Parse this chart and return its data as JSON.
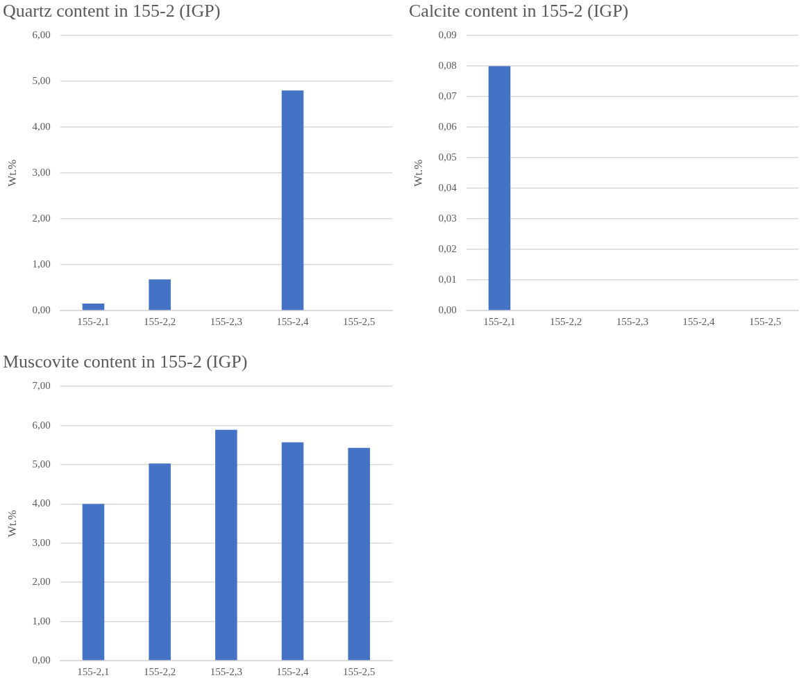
{
  "chart_data": [
    {
      "type": "bar",
      "title": "Quartz content in 155-2 (IGP)",
      "ylabel": "Wt.%",
      "categories": [
        "155-2,1",
        "155-2,2",
        "155-2,3",
        "155-2,4",
        "155-2,5"
      ],
      "values": [
        0.15,
        0.68,
        0,
        4.8,
        0
      ],
      "color": "#4472c4",
      "ylim": [
        0,
        6
      ],
      "yticks": [
        {
          "value": 0,
          "label": "0,00"
        },
        {
          "value": 1,
          "label": "1,00"
        },
        {
          "value": 2,
          "label": "2,00"
        },
        {
          "value": 3,
          "label": "3,00"
        },
        {
          "value": 4,
          "label": "4,00"
        },
        {
          "value": 5,
          "label": "5,00"
        },
        {
          "value": 6,
          "label": "6,00"
        }
      ],
      "grid": "y"
    },
    {
      "type": "bar",
      "title": "Calcite content in 155-2 (IGP)",
      "ylabel": "Wt.%",
      "categories": [
        "155-2,1",
        "155-2,2",
        "155-2,3",
        "155-2,4",
        "155-2,5"
      ],
      "values": [
        0.08,
        0,
        0,
        0,
        0
      ],
      "color": "#4472c4",
      "ylim": [
        0,
        0.09
      ],
      "yticks": [
        {
          "value": 0,
          "label": "0,00"
        },
        {
          "value": 0.01,
          "label": "0,01"
        },
        {
          "value": 0.02,
          "label": "0,02"
        },
        {
          "value": 0.03,
          "label": "0,03"
        },
        {
          "value": 0.04,
          "label": "0,04"
        },
        {
          "value": 0.05,
          "label": "0,05"
        },
        {
          "value": 0.06,
          "label": "0,06"
        },
        {
          "value": 0.07,
          "label": "0,07"
        },
        {
          "value": 0.08,
          "label": "0,08"
        },
        {
          "value": 0.09,
          "label": "0,09"
        }
      ],
      "grid": "y"
    },
    {
      "type": "bar",
      "title": "Muscovite content in 155-2 (IGP)",
      "ylabel": "Wt.%",
      "categories": [
        "155-2,1",
        "155-2,2",
        "155-2,3",
        "155-2,4",
        "155-2,5"
      ],
      "values": [
        4.0,
        5.03,
        5.89,
        5.57,
        5.43
      ],
      "color": "#4472c4",
      "ylim": [
        0,
        7
      ],
      "yticks": [
        {
          "value": 0,
          "label": "0,00"
        },
        {
          "value": 1,
          "label": "1,00"
        },
        {
          "value": 2,
          "label": "2,00"
        },
        {
          "value": 3,
          "label": "3,00"
        },
        {
          "value": 4,
          "label": "4,00"
        },
        {
          "value": 5,
          "label": "5,00"
        },
        {
          "value": 6,
          "label": "6,00"
        },
        {
          "value": 7,
          "label": "7,00"
        }
      ],
      "grid": "y"
    }
  ]
}
